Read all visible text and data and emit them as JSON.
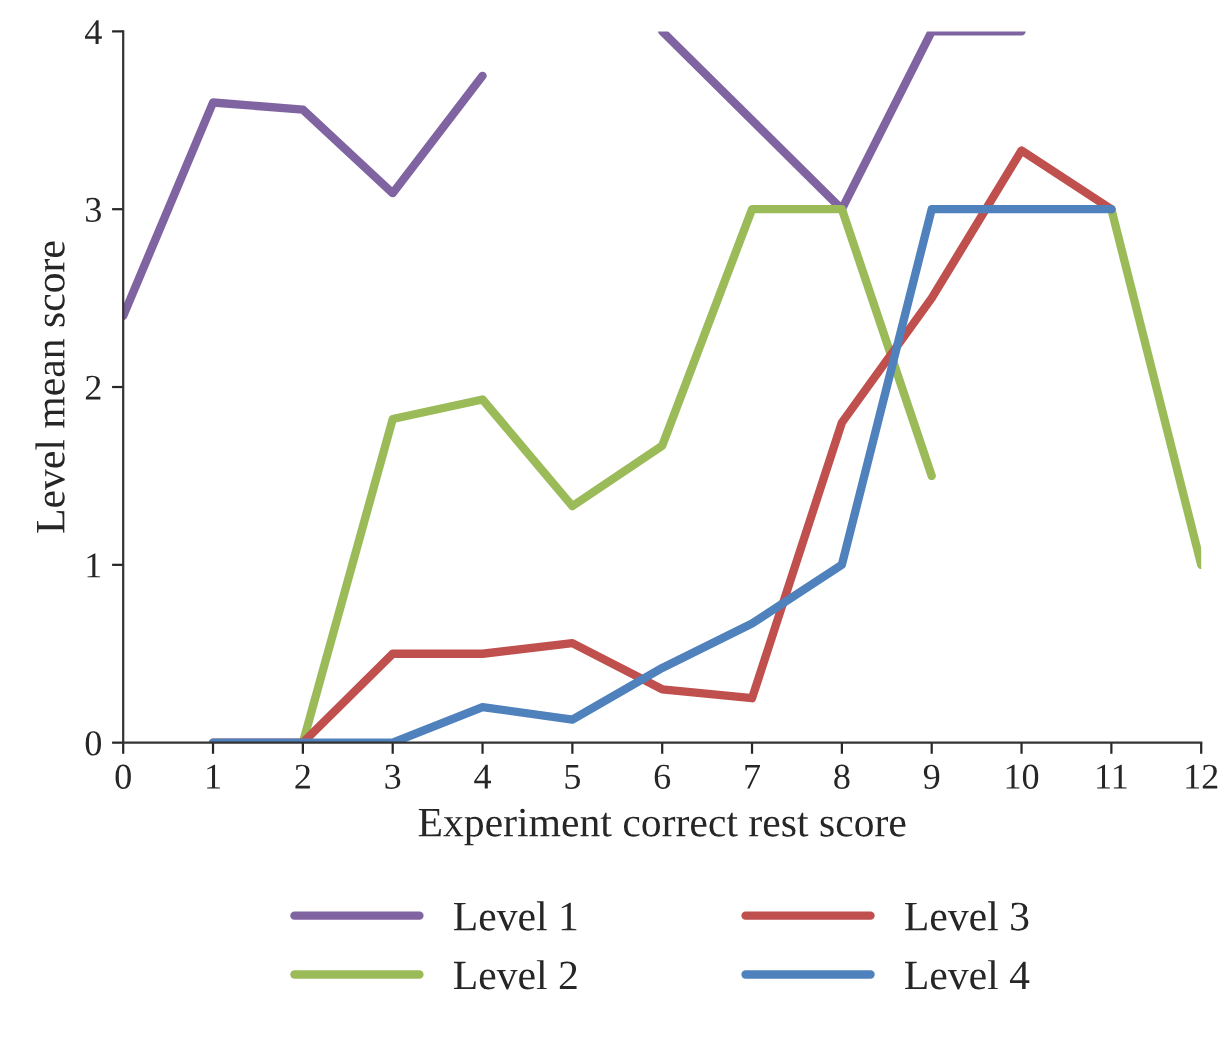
{
  "chart_data": {
    "type": "line",
    "xlabel": "Experiment correct rest score",
    "ylabel": "Level mean score",
    "x": [
      0,
      1,
      2,
      3,
      4,
      5,
      6,
      7,
      8,
      9,
      10,
      11,
      12
    ],
    "series": [
      {
        "name": "Level 1",
        "color": "#8064a2",
        "values": [
          2.4,
          3.6,
          3.56,
          3.09,
          3.75,
          null,
          4.0,
          3.5,
          3.0,
          4.0,
          4.0,
          null,
          null
        ]
      },
      {
        "name": "Level 2",
        "color": "#9bbb59",
        "values": [
          null,
          null,
          0,
          1.82,
          1.93,
          1.33,
          1.67,
          3.0,
          3.0,
          1.5,
          null,
          3.0,
          1.0
        ]
      },
      {
        "name": "Level 3",
        "color": "#c0504d",
        "values": [
          null,
          0,
          0,
          0.5,
          0.5,
          0.56,
          0.3,
          0.25,
          1.8,
          2.5,
          3.33,
          3.0,
          null
        ]
      },
      {
        "name": "Level 4",
        "color": "#4f81bd",
        "values": [
          null,
          0,
          0,
          0,
          0.2,
          0.13,
          0.42,
          0.67,
          1.0,
          3.0,
          3.0,
          3.0,
          null
        ]
      }
    ],
    "xlim": [
      0,
      12
    ],
    "xticks": [
      0,
      1,
      2,
      3,
      4,
      5,
      6,
      7,
      8,
      9,
      10,
      11,
      12
    ],
    "ylim": [
      0,
      4
    ],
    "yticks": [
      0,
      1,
      2,
      3,
      4
    ],
    "grid": false,
    "legend": "bottom",
    "marker": "none",
    "line_style": "solid"
  }
}
